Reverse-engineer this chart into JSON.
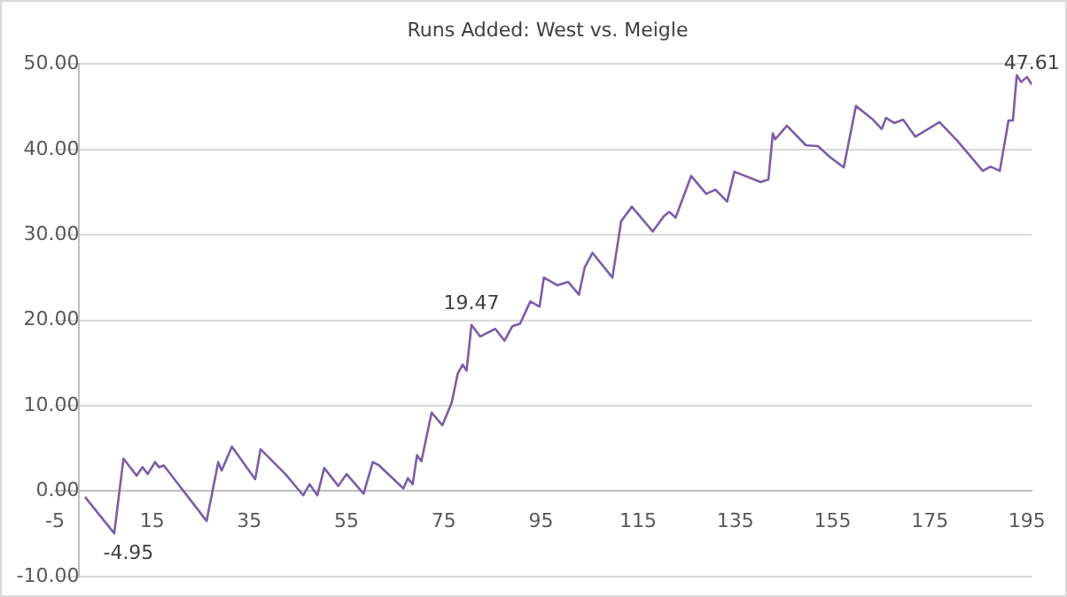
{
  "chart_data": {
    "type": "line",
    "title": "Runs Added: West vs. Meigle",
    "x": [
      1.2,
      7.2,
      9.1,
      11.8,
      13,
      14.1,
      15.6,
      16.4,
      17.4,
      26.2,
      28.6,
      29.3,
      31.4,
      36.2,
      37.3,
      42.4,
      46.1,
      47.4,
      49,
      50.4,
      53.3,
      55,
      58.5,
      60.4,
      61.7,
      66.7,
      67.6,
      68.6,
      69.5,
      70.4,
      72.5,
      74.7,
      76.6,
      77.9,
      78.9,
      79.7,
      80.7,
      82.5,
      85.6,
      87.5,
      89.1,
      90.7,
      92.8,
      94.7,
      95.6,
      98.4,
      100.6,
      102.8,
      104,
      105.6,
      109.7,
      111.5,
      113.7,
      118,
      120.3,
      121.4,
      122.7,
      125.9,
      129,
      130.9,
      133.3,
      134.8,
      140.2,
      141.8,
      142.7,
      143.2,
      145.6,
      149.5,
      152,
      154.5,
      157.3,
      159.8,
      163.3,
      165.1,
      166,
      167.7,
      169.5,
      172,
      177,
      180.7,
      185.9,
      187.5,
      189.4,
      191.2,
      192.1,
      192.9,
      193.8,
      195,
      196
    ],
    "series": [
      {
        "color": "#7b5ea7",
        "values": [
          -0.7,
          -4.95,
          3.8,
          1.8,
          2.8,
          2,
          3.4,
          2.8,
          3,
          -3.5,
          3.4,
          2.4,
          5.2,
          1.4,
          4.9,
          2,
          -0.5,
          0.8,
          -0.5,
          2.7,
          0.6,
          2,
          -0.3,
          3.4,
          3,
          0.3,
          1.5,
          0.8,
          4.2,
          3.5,
          9.2,
          7.7,
          10.3,
          13.8,
          14.8,
          14.1,
          19.47,
          18.1,
          19,
          17.6,
          19.3,
          19.6,
          22.2,
          21.6,
          25,
          24.1,
          24.5,
          23,
          26.2,
          27.9,
          25,
          31.6,
          33.3,
          30.4,
          32.2,
          32.7,
          32,
          36.9,
          34.8,
          35.3,
          33.9,
          37.4,
          36.2,
          36.5,
          41.9,
          41.2,
          42.8,
          40.5,
          40.4,
          39.1,
          37.9,
          45.1,
          43.5,
          42.4,
          43.7,
          43.1,
          43.5,
          41.5,
          43.2,
          41,
          37.5,
          38,
          37.5,
          43.4,
          43.4,
          48.7,
          47.9,
          48.5,
          47.61
        ],
        "value_labels": [
          null,
          "-4.95",
          null,
          null,
          null,
          null,
          null,
          null,
          null,
          null,
          null,
          null,
          null,
          null,
          null,
          null,
          null,
          null,
          null,
          null,
          null,
          null,
          null,
          null,
          null,
          null,
          null,
          null,
          null,
          null,
          null,
          null,
          null,
          null,
          null,
          null,
          "19.47",
          null,
          null,
          null,
          null,
          null,
          null,
          null,
          null,
          null,
          null,
          null,
          null,
          null,
          null,
          null,
          null,
          null,
          null,
          null,
          null,
          null,
          null,
          null,
          null,
          null,
          null,
          null,
          null,
          null,
          null,
          null,
          null,
          null,
          null,
          null,
          null,
          null,
          null,
          null,
          null,
          null,
          null,
          null,
          null,
          null,
          null,
          null,
          null,
          null,
          null,
          null,
          "47.61"
        ]
      }
    ],
    "xlim": [
      -5,
      196
    ],
    "xticks": [
      -5,
      15,
      35,
      55,
      75,
      95,
      115,
      135,
      155,
      175,
      195
    ],
    "ylim": [
      -10,
      50
    ],
    "yticks": [
      {
        "value": -10,
        "label": "-10.00"
      },
      {
        "value": 0,
        "label": "0.00"
      },
      {
        "value": 10,
        "label": "10.00"
      },
      {
        "value": 20,
        "label": "20.00"
      },
      {
        "value": 30,
        "label": "30.00"
      },
      {
        "value": 40,
        "label": "40.00"
      },
      {
        "value": 50,
        "label": "50.00"
      }
    ],
    "grid": "y",
    "legend": false,
    "marker": "none",
    "line_style": "solid"
  }
}
